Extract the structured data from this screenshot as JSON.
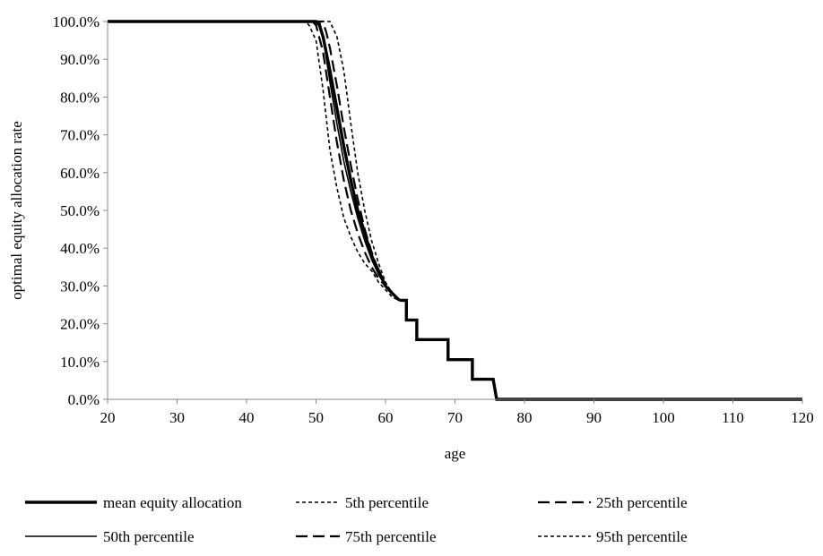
{
  "chart_data": {
    "type": "line",
    "title": "",
    "xlabel": "age",
    "ylabel": "optimal equity allocation rate",
    "xlim": [
      20,
      120
    ],
    "ylim": [
      0,
      1
    ],
    "x_ticks": [
      20,
      30,
      40,
      50,
      60,
      70,
      80,
      90,
      100,
      110,
      120
    ],
    "x_tick_labels": [
      "20",
      "30",
      "40",
      "50",
      "60",
      "70",
      "80",
      "90",
      "100",
      "110",
      "120"
    ],
    "y_ticks": [
      0,
      0.1,
      0.2,
      0.3,
      0.4,
      0.5,
      0.6,
      0.7,
      0.8,
      0.9,
      1.0
    ],
    "y_tick_labels": [
      "0.0%",
      "10.0%",
      "20.0%",
      "30.0%",
      "40.0%",
      "50.0%",
      "60.0%",
      "70.0%",
      "80.0%",
      "90.0%",
      "100.0%"
    ],
    "grid": false,
    "legend_position": "bottom",
    "tail": {
      "x": [
        62,
        63,
        63,
        64.5,
        64.5,
        69,
        69,
        71.5,
        71.5,
        72.5,
        72.5,
        75.5,
        75.5,
        76,
        76,
        120
      ],
      "y": [
        0.262,
        0.262,
        0.21,
        0.21,
        0.158,
        0.158,
        0.105,
        0.105,
        0.105,
        0.105,
        0.053,
        0.053,
        0.053,
        0.0,
        0.0,
        0.0
      ]
    },
    "series": [
      {
        "name": "mean equity allocation",
        "style": "thick-solid",
        "x": [
          20,
          50,
          50.5,
          51,
          52,
          53,
          54,
          55,
          56,
          57,
          58,
          59,
          60,
          61,
          62
        ],
        "y": [
          1,
          1,
          0.99,
          0.96,
          0.87,
          0.77,
          0.67,
          0.58,
          0.5,
          0.44,
          0.38,
          0.34,
          0.3,
          0.28,
          0.262
        ]
      },
      {
        "name": "5th percentile",
        "style": "short-dash",
        "x": [
          20,
          48.5,
          49,
          50,
          51,
          52,
          53,
          54,
          55,
          56,
          57,
          58,
          59,
          60,
          61,
          62
        ],
        "y": [
          1,
          1,
          0.99,
          0.95,
          0.82,
          0.66,
          0.56,
          0.48,
          0.43,
          0.39,
          0.36,
          0.34,
          0.31,
          0.29,
          0.27,
          0.262
        ]
      },
      {
        "name": "25th percentile",
        "style": "long-dash",
        "x": [
          20,
          49.5,
          50,
          51,
          52,
          53,
          54,
          55,
          56,
          57,
          58,
          59,
          60,
          61,
          62
        ],
        "y": [
          1,
          1,
          0.99,
          0.92,
          0.8,
          0.68,
          0.58,
          0.5,
          0.44,
          0.39,
          0.35,
          0.32,
          0.3,
          0.28,
          0.262
        ]
      },
      {
        "name": "50th percentile",
        "style": "thin-solid",
        "x": [
          20,
          50.5,
          51,
          52,
          53,
          54,
          55,
          56,
          57,
          58,
          59,
          60,
          61,
          62
        ],
        "y": [
          1,
          1,
          0.96,
          0.84,
          0.73,
          0.63,
          0.55,
          0.48,
          0.42,
          0.37,
          0.33,
          0.3,
          0.28,
          0.262
        ]
      },
      {
        "name": "75th percentile",
        "style": "long-dash",
        "x": [
          20,
          51,
          51.5,
          52,
          53,
          54,
          55,
          56,
          57,
          58,
          59,
          60,
          61,
          62
        ],
        "y": [
          1,
          1,
          0.97,
          0.93,
          0.83,
          0.72,
          0.62,
          0.53,
          0.45,
          0.39,
          0.34,
          0.3,
          0.28,
          0.262
        ]
      },
      {
        "name": "95th percentile",
        "style": "short-dash",
        "x": [
          20,
          52,
          53,
          54,
          55,
          56,
          57,
          58,
          59,
          60,
          61,
          62
        ],
        "y": [
          1,
          1,
          0.96,
          0.87,
          0.73,
          0.6,
          0.5,
          0.42,
          0.36,
          0.31,
          0.28,
          0.262
        ]
      }
    ]
  }
}
